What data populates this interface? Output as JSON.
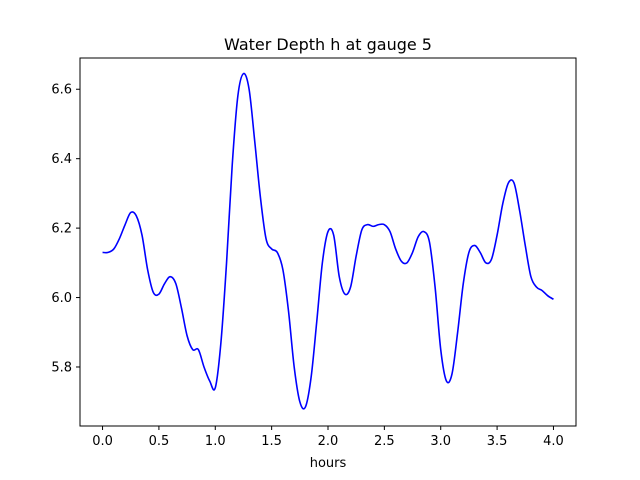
{
  "chart_data": {
    "type": "line",
    "title": "Water Depth h at gauge 5",
    "xlabel": "hours",
    "ylabel": "",
    "xlim": [
      -0.2,
      4.2
    ],
    "ylim": [
      5.63,
      6.69
    ],
    "xticks": [
      0.0,
      0.5,
      1.0,
      1.5,
      2.0,
      2.5,
      3.0,
      3.5,
      4.0
    ],
    "xtick_labels": [
      "0.0",
      "0.5",
      "1.0",
      "1.5",
      "2.0",
      "2.5",
      "3.0",
      "3.5",
      "4.0"
    ],
    "yticks": [
      5.8,
      6.0,
      6.2,
      6.4,
      6.6
    ],
    "ytick_labels": [
      "5.8",
      "6.0",
      "6.2",
      "6.4",
      "6.6"
    ],
    "grid": false,
    "line_color": "#0000ff",
    "series": [
      {
        "x": [
          0.0,
          0.05,
          0.1,
          0.15,
          0.2,
          0.25,
          0.3,
          0.35,
          0.4,
          0.45,
          0.5,
          0.55,
          0.6,
          0.65,
          0.7,
          0.75,
          0.8,
          0.85,
          0.9,
          0.95,
          1.0,
          1.05,
          1.1,
          1.15,
          1.2,
          1.25,
          1.3,
          1.35,
          1.4,
          1.45,
          1.5,
          1.55,
          1.6,
          1.65,
          1.7,
          1.75,
          1.8,
          1.85,
          1.9,
          1.95,
          2.0,
          2.05,
          2.1,
          2.15,
          2.2,
          2.25,
          2.3,
          2.35,
          2.4,
          2.45,
          2.5,
          2.55,
          2.6,
          2.65,
          2.7,
          2.75,
          2.8,
          2.85,
          2.9,
          2.95,
          3.0,
          3.05,
          3.1,
          3.15,
          3.2,
          3.25,
          3.3,
          3.35,
          3.4,
          3.45,
          3.5,
          3.55,
          3.6,
          3.65,
          3.7,
          3.75,
          3.8,
          3.85,
          3.9,
          3.95,
          4.0
        ],
        "values": [
          6.13,
          6.13,
          6.14,
          6.17,
          6.21,
          6.245,
          6.235,
          6.18,
          6.08,
          6.015,
          6.01,
          6.04,
          6.06,
          6.04,
          5.97,
          5.89,
          5.85,
          5.85,
          5.8,
          5.76,
          5.74,
          5.87,
          6.1,
          6.38,
          6.58,
          6.645,
          6.6,
          6.45,
          6.29,
          6.17,
          6.14,
          6.13,
          6.08,
          5.96,
          5.8,
          5.7,
          5.685,
          5.77,
          5.93,
          6.1,
          6.19,
          6.18,
          6.06,
          6.01,
          6.03,
          6.12,
          6.195,
          6.21,
          6.205,
          6.21,
          6.21,
          6.19,
          6.14,
          6.105,
          6.1,
          6.13,
          6.175,
          6.19,
          6.16,
          6.03,
          5.85,
          5.76,
          5.78,
          5.9,
          6.04,
          6.13,
          6.15,
          6.13,
          6.1,
          6.11,
          6.18,
          6.27,
          6.33,
          6.33,
          6.25,
          6.15,
          6.06,
          6.03,
          6.02,
          6.005,
          5.995
        ]
      }
    ]
  }
}
